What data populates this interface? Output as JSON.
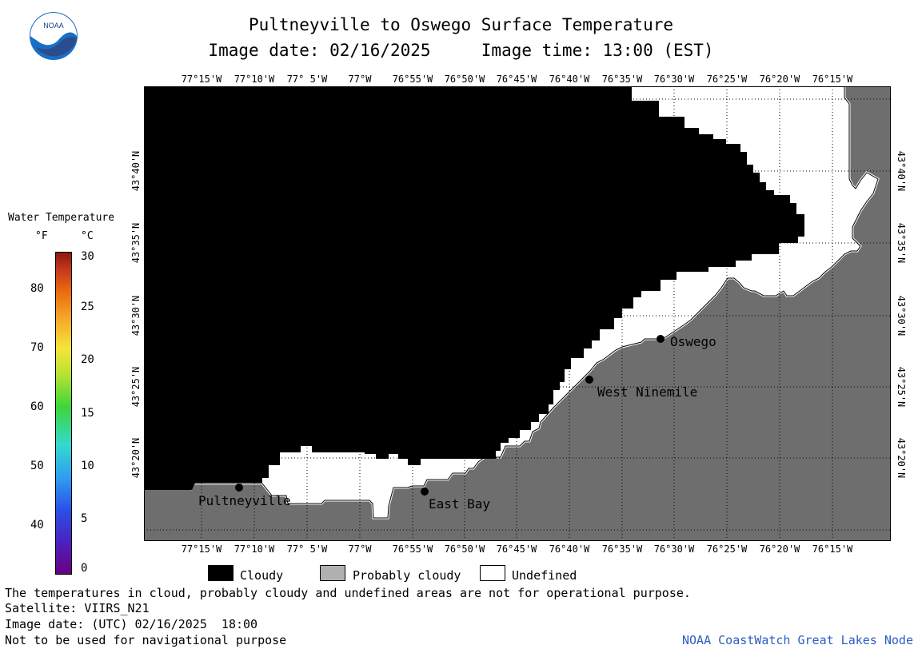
{
  "header": {
    "title": "Pultneyville to Oswego Surface Temperature",
    "subtitle": "Image date: 02/16/2025     Image time: 13:00 (EST)"
  },
  "logo": {
    "text": "NOAA"
  },
  "map": {
    "colors": {
      "cloudy": "#000000",
      "land": "#6e6e6e",
      "undefined": "#ffffff",
      "coast": "#ffffff"
    },
    "longitude_labels": [
      "77°15'W",
      "77°10'W",
      "77° 5'W",
      "77°W",
      "76°55'W",
      "76°50'W",
      "76°45'W",
      "76°40'W",
      "76°35'W",
      "76°30'W",
      "76°25'W",
      "76°20'W",
      "76°15'W"
    ],
    "latitude_labels": [
      "43°40'N",
      "43°35'N",
      "43°30'N",
      "43°25'N",
      "43°20'N"
    ],
    "cities": [
      "Oswego",
      "West Ninemile",
      "Pultneyville",
      "East Bay"
    ]
  },
  "colorbar": {
    "title": "Water Temperature",
    "unit_f": "°F",
    "unit_c": "°C",
    "f_ticks": [
      "80",
      "70",
      "60",
      "50",
      "40"
    ],
    "c_ticks": [
      "30",
      "25",
      "20",
      "15",
      "10",
      "5",
      "0"
    ]
  },
  "legend": {
    "cloudy": "Cloudy",
    "probably_cloudy": "Probably cloudy",
    "undefined": "Undefined",
    "cloudy_color": "#000000",
    "probably_cloudy_color": "#b0b0b0",
    "undefined_color": "#ffffff"
  },
  "footer": {
    "note": "The temperatures in cloud, probably cloudy and undefined areas are not for operational purpose.",
    "satellite": "Satellite: VIIRS_N21",
    "utc_date": "Image date: (UTC) 02/16/2025  18:00",
    "nav_warning": "Not to be used for navigational purpose",
    "credit": "NOAA CoastWatch Great Lakes Node"
  }
}
